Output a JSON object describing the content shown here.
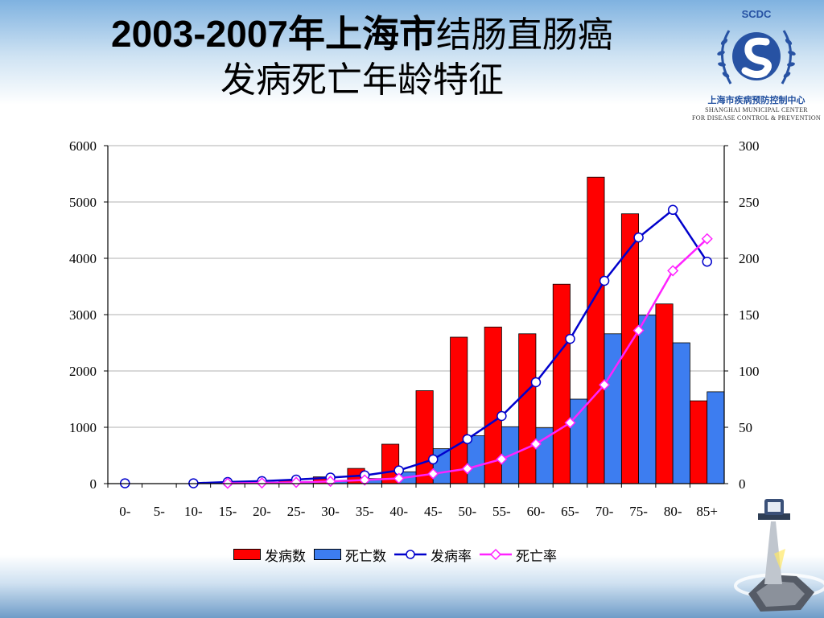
{
  "title": {
    "line1_bold": "2003-2007年上海市",
    "line1_rest": "结肠直肠癌",
    "line2": "发病死亡年龄特征"
  },
  "logo": {
    "brand": "SCDC",
    "org_cn": "上海市疾病预防控制中心",
    "org_en_line1": "SHANGHAI MUNICIPAL CENTER",
    "org_en_line2": "FOR DISEASE CONTROL & PREVENTION"
  },
  "colors": {
    "incidence_bar": "#ff0000",
    "death_bar": "#3d7df0",
    "incidence_rate": "#0000cc",
    "death_rate": "#ff22ff"
  },
  "chart_data": {
    "type": "bar",
    "categories": [
      "0-",
      "5-",
      "10-",
      "15-",
      "20-",
      "25-",
      "30-",
      "35-",
      "40-",
      "45-",
      "50-",
      "55-",
      "60-",
      "65-",
      "70-",
      "75-",
      "80-",
      "85+"
    ],
    "y_left": {
      "ticks": [
        0,
        1000,
        2000,
        3000,
        4000,
        5000,
        6000
      ],
      "ylim": [
        0,
        6000
      ]
    },
    "y_right": {
      "ticks": [
        0,
        50,
        100,
        150,
        200,
        250,
        300
      ],
      "ylim": [
        0,
        300
      ]
    },
    "grid": true,
    "legend_position": "bottom",
    "series": [
      {
        "name": "发病数",
        "kind": "bar",
        "axis": "left",
        "values": [
          0,
          0,
          0,
          8,
          20,
          55,
          120,
          270,
          700,
          1650,
          2600,
          2780,
          2660,
          3540,
          5440,
          4790,
          3190,
          1470
        ]
      },
      {
        "name": "死亡数",
        "kind": "bar",
        "axis": "left",
        "values": [
          0,
          0,
          0,
          5,
          10,
          20,
          40,
          90,
          210,
          620,
          850,
          1010,
          990,
          1500,
          2660,
          2990,
          2500,
          1630
        ]
      },
      {
        "name": "发病率",
        "kind": "line",
        "axis": "right",
        "marker": "circle",
        "values": [
          0.3,
          null,
          0.3,
          1.4,
          2.2,
          3.6,
          5.4,
          7.3,
          11.7,
          21.5,
          39.5,
          60,
          90,
          128.5,
          180,
          218.5,
          243,
          197
        ]
      },
      {
        "name": "死亡率",
        "kind": "line",
        "axis": "right",
        "marker": "diamond",
        "values": [
          null,
          null,
          null,
          0.3,
          0.6,
          1.1,
          2.0,
          3.2,
          4.6,
          8.7,
          13.3,
          21.7,
          35.2,
          54,
          87.7,
          136,
          189,
          217.3
        ]
      }
    ]
  }
}
